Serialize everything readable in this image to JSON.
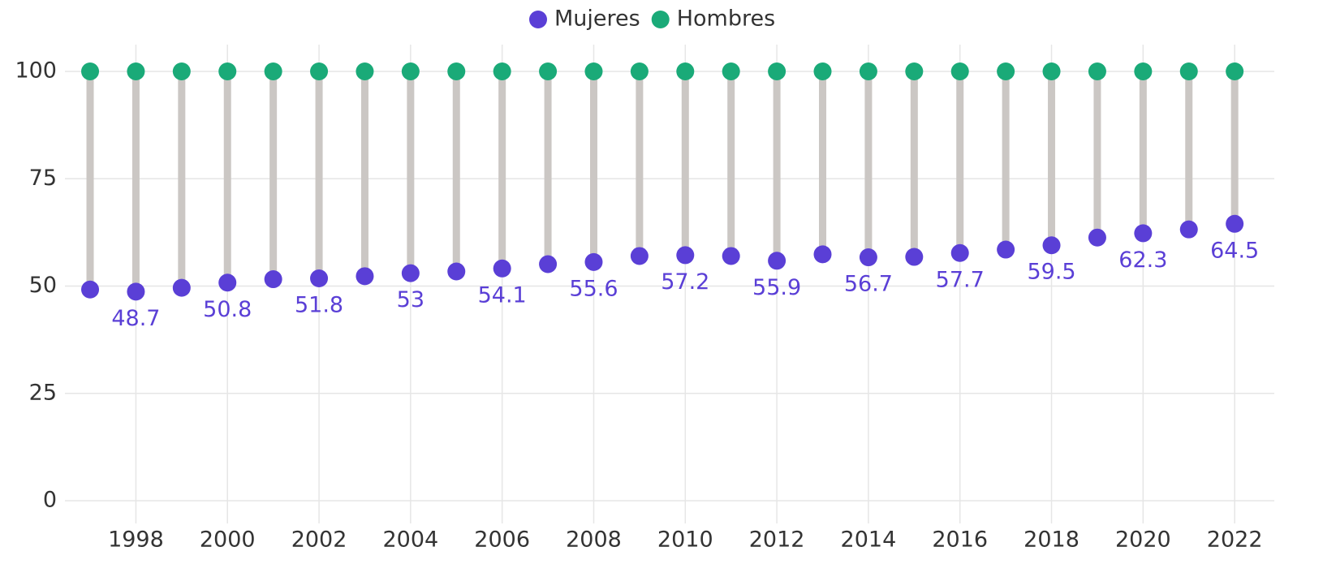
{
  "chart_data": {
    "type": "dumbbell",
    "x": [
      1997,
      1998,
      1999,
      2000,
      2001,
      2002,
      2003,
      2004,
      2005,
      2006,
      2007,
      2008,
      2009,
      2010,
      2011,
      2012,
      2013,
      2014,
      2015,
      2016,
      2017,
      2018,
      2019,
      2020,
      2021,
      2022
    ],
    "series": [
      {
        "name": "Mujeres",
        "color": "#5a3fd6",
        "values": [
          49.2,
          48.7,
          49.6,
          50.8,
          51.6,
          51.8,
          52.3,
          53,
          53.4,
          54.1,
          55.1,
          55.6,
          57.0,
          57.2,
          57.0,
          55.9,
          57.4,
          56.7,
          56.8,
          57.7,
          58.5,
          59.5,
          61.3,
          62.3,
          63.2,
          64.5
        ],
        "value_labels": [
          null,
          "48.7",
          null,
          "50.8",
          null,
          "51.8",
          null,
          "53",
          null,
          "54.1",
          null,
          "55.6",
          null,
          "57.2",
          null,
          "55.9",
          null,
          "56.7",
          null,
          "57.7",
          null,
          "59.5",
          null,
          "62.3",
          null,
          "64.5"
        ]
      },
      {
        "name": "Hombres",
        "color": "#1aaa78",
        "values": [
          100,
          100,
          100,
          100,
          100,
          100,
          100,
          100,
          100,
          100,
          100,
          100,
          100,
          100,
          100,
          100,
          100,
          100,
          100,
          100,
          100,
          100,
          100,
          100,
          100,
          100
        ]
      }
    ],
    "connector_color": "#cbc7c4",
    "xlim": [
      1996.45,
      2022.6
    ],
    "xticks": [
      1998,
      2000,
      2002,
      2004,
      2006,
      2008,
      2010,
      2012,
      2014,
      2016,
      2018,
      2020,
      2022
    ],
    "ylim": [
      0,
      100
    ],
    "yticks": [
      0,
      25,
      50,
      75,
      100
    ],
    "grid": true,
    "legend": "top"
  }
}
